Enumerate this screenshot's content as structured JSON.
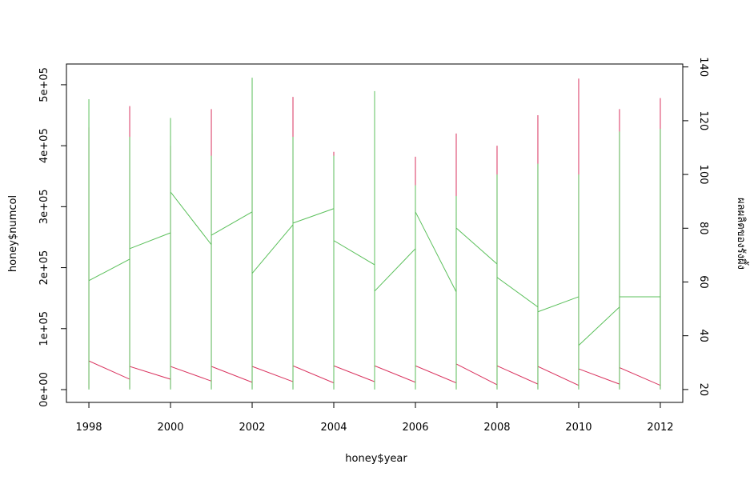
{
  "chart_data": {
    "type": "line",
    "xlabel": "honey$year",
    "ylabel": "honey$numcol",
    "y2label": "ผลผลิตของรังผึ้ง",
    "x": [
      1998,
      1998,
      1998,
      1998,
      1999,
      1999,
      1999,
      1999,
      2000,
      2000,
      2000,
      2000,
      2001,
      2001,
      2001,
      2001,
      2002,
      2002,
      2002,
      2002,
      2003,
      2003,
      2003,
      2003,
      2004,
      2004,
      2004,
      2004,
      2005,
      2005,
      2005,
      2005,
      2006,
      2006,
      2006,
      2006,
      2007,
      2007,
      2007,
      2007,
      2008,
      2008,
      2008,
      2008,
      2009,
      2009,
      2009,
      2009,
      2010,
      2010,
      2010,
      2010,
      2011,
      2011,
      2011,
      2011,
      2012,
      2012,
      2012,
      2012
    ],
    "series": [
      {
        "name": "numcol",
        "color": "#d9325e",
        "values": [
          20000,
          430000,
          2000,
          47000,
          17000,
          465000,
          2000,
          38000,
          17000,
          400000,
          2000,
          38000,
          14000,
          460000,
          2000,
          38000,
          12000,
          420000,
          2000,
          38000,
          13000,
          480000,
          2000,
          39000,
          11000,
          390000,
          2000,
          39000,
          13000,
          450000,
          2000,
          39000,
          12000,
          382000,
          2000,
          39000,
          11000,
          420000,
          2000,
          42000,
          8000,
          400000,
          2000,
          39000,
          9000,
          450000,
          2000,
          38000,
          7000,
          510000,
          2000,
          34000,
          9000,
          460000,
          2000,
          36000,
          7000,
          478000,
          2000,
          7000
        ]
      },
      {
        "name": "yieldpercol",
        "color": "#5cc05c",
        "axis": "y2",
        "values": [
          60.5,
          128,
          20,
          60.5,
          68.5,
          114,
          20,
          72.4,
          78.3,
          121,
          20,
          93.5,
          73.9,
          107,
          20,
          77.4,
          86.1,
          136,
          20,
          63.2,
          81.3,
          114,
          20,
          81.9,
          87.3,
          107,
          20,
          75.4,
          66.4,
          131,
          20,
          56.6,
          72.4,
          96,
          20,
          86.1,
          56.3,
          92,
          20,
          80.1,
          66.7,
          100,
          20,
          61.7,
          50.7,
          104,
          20,
          48.9,
          54.5,
          100,
          20,
          36.4,
          50.7,
          116,
          20,
          54.5,
          54.5,
          117,
          20,
          54.5
        ]
      }
    ],
    "xlim": [
      1997.45,
      2012.55
    ],
    "xticks": [
      1998,
      2000,
      2002,
      2004,
      2006,
      2008,
      2010,
      2012
    ],
    "ylim": [
      -21000,
      534000
    ],
    "yticks": [
      {
        "value": 0,
        "label": "0e+00"
      },
      {
        "value": 100000,
        "label": "1e+05"
      },
      {
        "value": 200000,
        "label": "2e+05"
      },
      {
        "value": 300000,
        "label": "3e+05"
      },
      {
        "value": 400000,
        "label": "4e+05"
      },
      {
        "value": 500000,
        "label": "5e+05"
      }
    ],
    "y2lim": [
      15.2,
      141.1
    ],
    "y2ticks": [
      20,
      40,
      60,
      80,
      100,
      120,
      140
    ]
  }
}
